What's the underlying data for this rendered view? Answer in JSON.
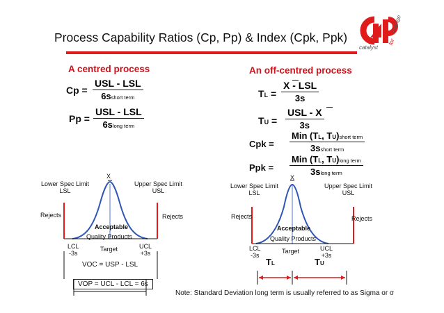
{
  "title": "Process Capability Ratios (Cp, Pp) & Index (Cpk, Ppk)",
  "logo": {
    "mark": "C4P",
    "catalyst": "catalyst",
    "for": "for",
    "change": "change"
  },
  "left": {
    "header": "A centred process",
    "cp": {
      "label": "Cp =",
      "num": "USL - LSL",
      "den": "6s",
      "den_sub": "short term"
    },
    "pp": {
      "label": "Pp =",
      "num": "USL - LSL",
      "den": "6s",
      "den_sub": "long term"
    },
    "xbar": "X",
    "lsl1": "Lower Spec Limit",
    "lsl2": "LSL",
    "usl1": "Upper Spec Limit",
    "usl2": "USL",
    "rejects_l": "Rejects",
    "rejects_r": "Rejects",
    "acceptable": "Acceptable",
    "quality": "Quality Products",
    "lcl1": "LCL",
    "lcl2": "-3s",
    "target": "Target",
    "ucl1": "UCL",
    "ucl2": "+3s",
    "voc": "VOC = USP - LSL",
    "vop": "VOP = UCL - LCL = 6s"
  },
  "right": {
    "header": "An off-centred process",
    "tl": {
      "label": "T",
      "label_sub": "L",
      "eq": "=",
      "num": "X - LSL",
      "den": "3s"
    },
    "tu": {
      "label": "T",
      "label_sub": "U",
      "eq": "=",
      "num": "USL - X",
      "den": "3s"
    },
    "cpk": {
      "label": "Cpk =",
      "num_a": "Min (T",
      "num_b": "L",
      "num_c": ", T",
      "num_d": "U",
      "num_e": ")",
      "num_sub": "short term",
      "den": "3s",
      "den_sub": "short term"
    },
    "ppk": {
      "label": "Ppk =",
      "num_a": "Min (T",
      "num_b": "L",
      "num_c": ", T",
      "num_d": "U",
      "num_e": ")",
      "num_sub": "long term",
      "den": "3s",
      "den_sub": "long term"
    },
    "xbar": "X",
    "lsl1": "Lower Spec Limit",
    "lsl2": "LSL",
    "usl1": "Upper Spec Limit",
    "usl2": "USL",
    "rejects_l": "Rejects",
    "rejects_r": "Rejects",
    "acceptable": "Acceptable",
    "quality": "Quality Products",
    "lcl1": "LCL",
    "lcl2": "-3s",
    "target": "Target",
    "ucl1": "UCL",
    "ucl2": "+3s",
    "tl_lbl": "T",
    "tl_sub": "L",
    "tu_lbl": "T",
    "tu_sub": "U"
  },
  "note": "Note: Standard Deviation long term is usually referred to as Sigma or σ"
}
